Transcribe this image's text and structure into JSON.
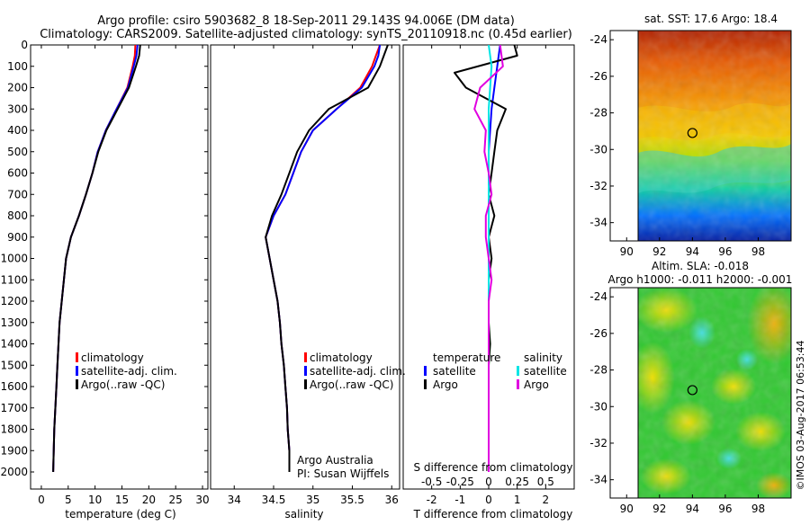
{
  "header": {
    "line1": "Argo profile: csiro 5903682_8 18-Sep-2011 29.143S 94.006E (DM data)",
    "line2": "Climatology: CARS2009. Satellite-adjusted climatology: synTS_20110918.nc (0.45d earlier)"
  },
  "colors": {
    "climatology": "#ff0000",
    "satellite": "#0000ff",
    "argo": "#000000",
    "salinity_satellite": "#00e5e5",
    "salinity_argo": "#e000e0"
  },
  "side_text": "©IMOS 03-Aug-2017 06:53:44",
  "chart_data": [
    {
      "type": "line",
      "id": "temperature",
      "xlabel": "temperature (deg C)",
      "xlim": [
        -2,
        31
      ],
      "ylim": [
        2080,
        0
      ],
      "xticks": [
        0,
        5,
        10,
        15,
        20,
        25,
        30
      ],
      "yticks": [
        0,
        100,
        200,
        300,
        400,
        500,
        600,
        700,
        800,
        900,
        1000,
        1100,
        1200,
        1300,
        1400,
        1500,
        1600,
        1700,
        1800,
        1900,
        2000
      ],
      "legend": [
        "climatology",
        "satellite-adj. clim.",
        "Argo(..raw -QC)"
      ],
      "series": [
        {
          "name": "climatology",
          "x": [
            17.5,
            17.4,
            17.0,
            16.0,
            14.0,
            12.0,
            10.5,
            9.5,
            8.3,
            7.0,
            5.5,
            4.6,
            4.2,
            3.8,
            3.4,
            3.2,
            3.0,
            2.8,
            2.6,
            2.4,
            2.3,
            2.2
          ],
          "y": [
            0,
            50,
            100,
            200,
            300,
            400,
            500,
            600,
            700,
            800,
            900,
            1000,
            1100,
            1200,
            1300,
            1400,
            1500,
            1600,
            1700,
            1800,
            1900,
            2000
          ]
        },
        {
          "name": "satellite-adj. clim.",
          "x": [
            17.9,
            17.7,
            17.2,
            16.1,
            14.0,
            12.0,
            10.5,
            9.5,
            8.3,
            7.0,
            5.5,
            4.6,
            4.2,
            3.8,
            3.4,
            3.2,
            3.0,
            2.8,
            2.6,
            2.4,
            2.3,
            2.2
          ],
          "y": [
            0,
            50,
            100,
            200,
            300,
            400,
            500,
            600,
            700,
            800,
            900,
            1000,
            1100,
            1200,
            1300,
            1400,
            1500,
            1600,
            1700,
            1800,
            1900,
            2000
          ]
        },
        {
          "name": "Argo(..raw -QC)",
          "x": [
            18.4,
            18.2,
            17.6,
            16.3,
            14.2,
            12.1,
            10.6,
            9.5,
            8.3,
            7.0,
            5.5,
            4.6,
            4.2,
            3.8,
            3.4,
            3.2,
            3.0,
            2.8,
            2.6,
            2.4,
            2.3,
            2.2
          ],
          "y": [
            0,
            50,
            100,
            200,
            300,
            400,
            500,
            600,
            700,
            800,
            900,
            1000,
            1100,
            1200,
            1300,
            1400,
            1500,
            1600,
            1700,
            1800,
            1900,
            2000
          ]
        }
      ]
    },
    {
      "type": "line",
      "id": "salinity",
      "xlabel": "salinity",
      "xlim": [
        33.7,
        36.1
      ],
      "ylim": [
        2080,
        0
      ],
      "xticks": [
        34,
        34.5,
        35,
        35.5,
        36
      ],
      "legend": [
        "climatology",
        "satellite-adj. clim.",
        "Argo(..raw -QC)"
      ],
      "annotation": [
        "Argo Australia",
        "PI: Susan Wijffels"
      ],
      "series": [
        {
          "name": "climatology",
          "x": [
            35.85,
            35.8,
            35.75,
            35.6,
            35.3,
            35.0,
            34.85,
            34.75,
            34.65,
            34.5,
            34.4,
            34.45,
            34.5,
            34.55,
            34.58,
            34.6,
            34.63,
            34.65,
            34.67,
            34.68,
            34.7,
            34.7
          ],
          "y": [
            0,
            50,
            100,
            200,
            300,
            400,
            500,
            600,
            700,
            800,
            900,
            1000,
            1100,
            1200,
            1300,
            1400,
            1500,
            1600,
            1700,
            1800,
            1900,
            2000
          ]
        },
        {
          "name": "satellite-adj. clim.",
          "x": [
            35.85,
            35.83,
            35.78,
            35.62,
            35.3,
            35.0,
            34.85,
            34.75,
            34.65,
            34.5,
            34.4,
            34.45,
            34.5,
            34.55,
            34.58,
            34.6,
            34.63,
            34.65,
            34.67,
            34.68,
            34.7,
            34.7
          ],
          "y": [
            0,
            50,
            100,
            200,
            300,
            400,
            500,
            600,
            700,
            800,
            900,
            1000,
            1100,
            1200,
            1300,
            1400,
            1500,
            1600,
            1700,
            1800,
            1900,
            2000
          ]
        },
        {
          "name": "Argo(..raw -QC)",
          "x": [
            35.95,
            35.9,
            35.85,
            35.7,
            35.2,
            34.95,
            34.8,
            34.7,
            34.6,
            34.48,
            34.4,
            34.45,
            34.5,
            34.55,
            34.58,
            34.6,
            34.63,
            34.65,
            34.67,
            34.68,
            34.7,
            34.7
          ],
          "y": [
            0,
            50,
            100,
            200,
            300,
            400,
            500,
            600,
            700,
            800,
            900,
            1000,
            1100,
            1200,
            1300,
            1400,
            1500,
            1600,
            1700,
            1800,
            1900,
            2000
          ]
        }
      ]
    },
    {
      "type": "line",
      "id": "difference",
      "xlabel": "T difference from climatology",
      "xlabel_top": "S difference from climatology",
      "xlim": [
        -3,
        3
      ],
      "ylim": [
        2080,
        0
      ],
      "xticks": [
        -2,
        -1,
        0,
        1,
        2
      ],
      "sticks": [
        {
          "label": "-0.5",
          "x": -2
        },
        {
          "label": "-0.25",
          "x": -1
        },
        {
          "label": "0",
          "x": 0
        },
        {
          "label": "0.25",
          "x": 1
        },
        {
          "label": "0.5",
          "x": 2
        }
      ],
      "legend_groups": {
        "temperature_title": "temperature",
        "salinity_title": "salinity",
        "entries": [
          "satellite",
          "Argo",
          "satellite",
          "Argo"
        ]
      },
      "series": [
        {
          "name": "T satellite",
          "x": [
            0.4,
            0.3,
            0.2,
            0.1,
            0.05,
            0.0,
            0.0,
            0.0,
            0.0,
            0.0,
            0.0,
            0.0,
            0.0,
            0.0,
            0.0,
            0.0,
            0.0,
            0.0,
            0.0,
            0.0,
            0.0
          ],
          "y": [
            0,
            100,
            200,
            300,
            400,
            500,
            600,
            700,
            800,
            900,
            1000,
            1100,
            1200,
            1300,
            1400,
            1500,
            1600,
            1700,
            1800,
            1900,
            2000
          ]
        },
        {
          "name": "T Argo",
          "x": [
            0.9,
            1.0,
            -1.2,
            -0.8,
            0.6,
            0.3,
            0.2,
            0.1,
            0.0,
            0.2,
            0.0,
            0.1,
            0.0,
            0.0,
            0.0,
            0.05,
            0.0,
            0.0,
            0.0,
            0.0,
            0.0,
            0.0
          ],
          "y": [
            0,
            50,
            130,
            200,
            300,
            400,
            500,
            600,
            700,
            800,
            900,
            1000,
            1100,
            1200,
            1300,
            1400,
            1500,
            1600,
            1700,
            1800,
            1900,
            2000
          ]
        },
        {
          "name": "S satellite",
          "x": [
            0.0,
            0.1,
            0.05,
            0.0,
            0.0,
            0.0,
            0.0,
            0.0,
            0.0,
            0.0,
            0.0,
            0.0,
            0.0,
            0.0,
            0.0,
            0.0,
            0.0,
            0.0,
            0.0,
            0.0,
            0.0
          ],
          "y": [
            0,
            100,
            200,
            300,
            400,
            500,
            600,
            700,
            800,
            900,
            1000,
            1100,
            1200,
            1300,
            1400,
            1500,
            1600,
            1700,
            1800,
            1900,
            2000
          ]
        },
        {
          "name": "S Argo",
          "x": [
            0.4,
            0.5,
            -0.3,
            -0.5,
            -0.1,
            -0.15,
            0.0,
            0.1,
            -0.1,
            -0.1,
            0.0,
            0.1,
            0.0,
            0.0,
            0.0,
            0.0,
            0.0,
            0.0,
            0.0,
            0.0,
            0.0
          ],
          "y": [
            0,
            100,
            200,
            300,
            400,
            500,
            600,
            700,
            800,
            900,
            1000,
            1100,
            1200,
            1300,
            1400,
            1500,
            1600,
            1700,
            1800,
            1900,
            2000
          ]
        }
      ]
    },
    {
      "type": "heatmap",
      "id": "sst_map",
      "title": "sat. SST: 17.6 Argo: 18.4",
      "xticks": [
        90,
        92,
        94,
        96,
        98
      ],
      "yticks": [
        -24,
        -26,
        -28,
        -30,
        -32,
        -34
      ],
      "xlim": [
        89,
        100
      ],
      "ylim": [
        -35,
        -23.5
      ],
      "marker": {
        "lon": 94.0,
        "lat": -29.1
      }
    },
    {
      "type": "heatmap",
      "id": "sla_map",
      "title": "Altim. SLA: -0.018",
      "subtitle": "Argo h1000: -0.011 h2000: -0.001",
      "xticks": [
        90,
        92,
        94,
        96,
        98
      ],
      "yticks": [
        -24,
        -26,
        -28,
        -30,
        -32,
        -34
      ],
      "xlim": [
        89,
        100
      ],
      "ylim": [
        -35,
        -23.5
      ],
      "marker": {
        "lon": 94.0,
        "lat": -29.1
      }
    }
  ]
}
